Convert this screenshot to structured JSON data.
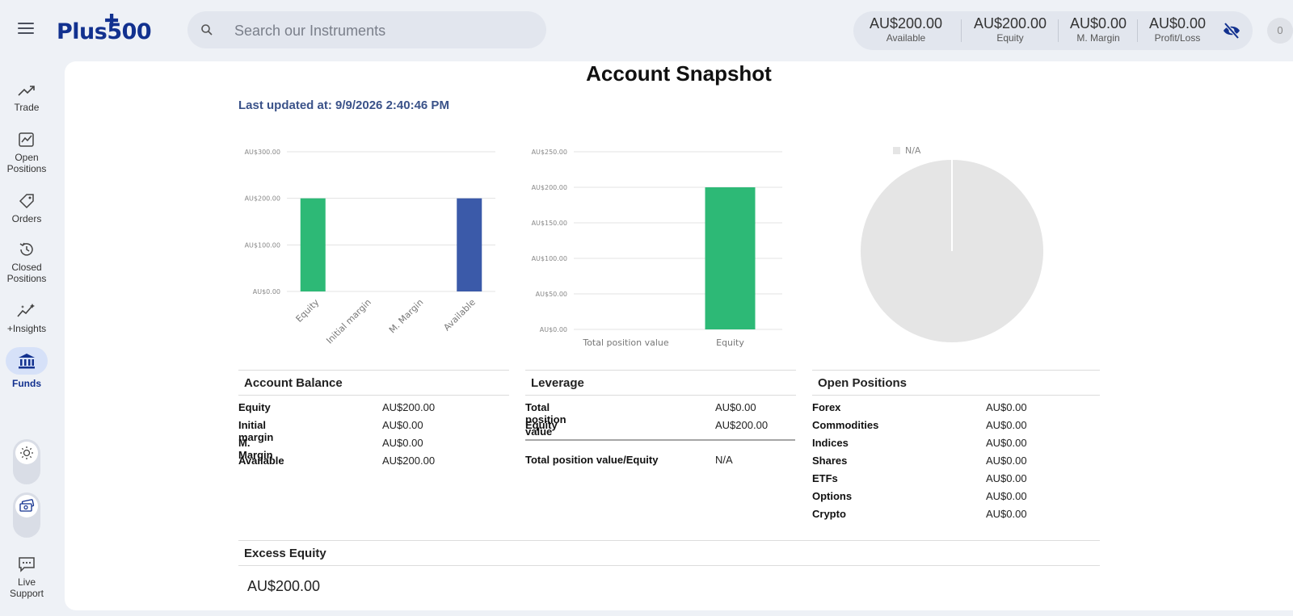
{
  "header": {
    "search_placeholder": "Search our Instruments",
    "stats": [
      {
        "value": "AU$200.00",
        "label": "Available"
      },
      {
        "value": "AU$200.00",
        "label": "Equity"
      },
      {
        "value": "AU$0.00",
        "label": "M. Margin"
      },
      {
        "value": "AU$0.00",
        "label": "Profit/Loss"
      }
    ],
    "avatar_initial": "0",
    "logo_text": "Plus500"
  },
  "sidebar": {
    "items": [
      {
        "label": "Trade",
        "icon": "trend-up-icon"
      },
      {
        "label": "Open Positions",
        "icon": "open-positions-icon"
      },
      {
        "label": "Orders",
        "icon": "tag-icon"
      },
      {
        "label": "Closed Positions",
        "icon": "history-icon"
      },
      {
        "label": "+Insights",
        "icon": "insights-icon"
      },
      {
        "label": "Funds",
        "icon": "bank-icon"
      },
      {
        "label": "Live Support",
        "icon": "chat-icon"
      }
    ],
    "active": "Funds"
  },
  "main": {
    "title": "Account Snapshot",
    "last_updated": "Last updated at: 9/9/2026 2:40:46 PM"
  },
  "colors": {
    "green": "#2db976",
    "blue": "#3b5aa9",
    "brand": "#12318f",
    "pie_gray": "#e5e5e5"
  },
  "chart_data": [
    {
      "type": "bar",
      "categories": [
        "Equity",
        "Initial margin",
        "M. Margin",
        "Available"
      ],
      "values": [
        200,
        0,
        0,
        200
      ],
      "colors": [
        "#2db976",
        "#2db976",
        "#2db976",
        "#3b5aa9"
      ],
      "ylim": [
        0,
        300
      ],
      "yticks": [
        "AU$0.00",
        "AU$100.00",
        "AU$200.00",
        "AU$300.00"
      ],
      "grid": true
    },
    {
      "type": "bar",
      "categories": [
        "Total position value",
        "Equity"
      ],
      "values": [
        0,
        200
      ],
      "colors": [
        "#2db976",
        "#2db976"
      ],
      "ylim": [
        0,
        250
      ],
      "yticks": [
        "AU$0.00",
        "AU$50.00",
        "AU$100.00",
        "AU$150.00",
        "AU$200.00",
        "AU$250.00"
      ],
      "grid": true
    },
    {
      "type": "pie",
      "legend": [
        "N/A"
      ],
      "values": [
        1
      ],
      "legend_position": "top-left"
    }
  ],
  "account_balance": {
    "title": "Account Balance",
    "rows": [
      {
        "label": "Equity",
        "value": "AU$200.00"
      },
      {
        "label": "Initial margin",
        "value": "AU$0.00"
      },
      {
        "label": "M. Margin",
        "value": "AU$0.00"
      },
      {
        "label": "Available",
        "value": "AU$200.00"
      }
    ]
  },
  "leverage": {
    "title": "Leverage",
    "rows": [
      {
        "label": "Total position value",
        "value": "AU$0.00"
      },
      {
        "label": "Equity",
        "value": "AU$200.00"
      }
    ],
    "ratio": {
      "label": "Total position value/Equity",
      "value": "N/A"
    }
  },
  "open_positions": {
    "title": "Open Positions",
    "rows": [
      {
        "label": "Forex",
        "value": "AU$0.00"
      },
      {
        "label": "Commodities",
        "value": "AU$0.00"
      },
      {
        "label": "Indices",
        "value": "AU$0.00"
      },
      {
        "label": "Shares",
        "value": "AU$0.00"
      },
      {
        "label": "ETFs",
        "value": "AU$0.00"
      },
      {
        "label": "Options",
        "value": "AU$0.00"
      },
      {
        "label": "Crypto",
        "value": "AU$0.00"
      }
    ]
  },
  "excess_equity": {
    "title": "Excess Equity",
    "value": "AU$200.00"
  }
}
